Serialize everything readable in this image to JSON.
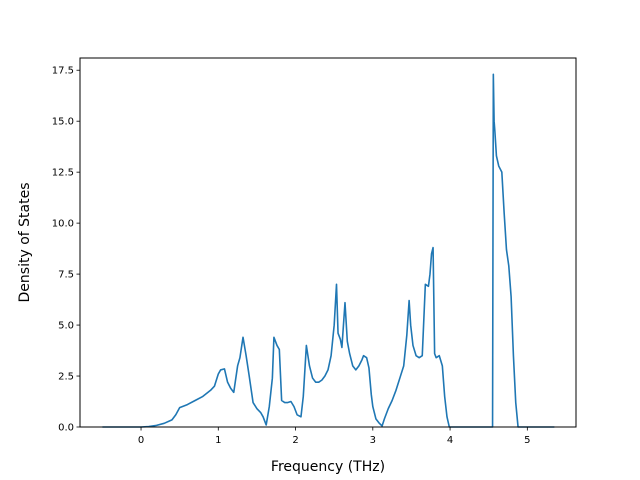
{
  "chart_data": {
    "type": "line",
    "title": "",
    "xlabel": "Frequency (THz)",
    "ylabel": "Density of States",
    "xlim": [
      -0.79,
      5.63
    ],
    "ylim": [
      0.0,
      18.1
    ],
    "xticks": [
      0,
      1,
      2,
      3,
      4,
      5
    ],
    "xtick_labels": [
      "0",
      "1",
      "2",
      "3",
      "4",
      "5"
    ],
    "yticks": [
      0.0,
      2.5,
      5.0,
      7.5,
      10.0,
      12.5,
      15.0,
      17.5
    ],
    "ytick_labels": [
      "0.0",
      "2.5",
      "5.0",
      "7.5",
      "10.0",
      "12.5",
      "15.0",
      "17.5"
    ],
    "grid": false,
    "legend": "none",
    "series_color": "#1f77b4",
    "series": [
      {
        "x": [
          -0.5,
          -0.2,
          0.0,
          0.1,
          0.2,
          0.3,
          0.4,
          0.45,
          0.5,
          0.6,
          0.7,
          0.8,
          0.9,
          0.95,
          1.0,
          1.03,
          1.08,
          1.12,
          1.16,
          1.2,
          1.25,
          1.28,
          1.32,
          1.36,
          1.4,
          1.45,
          1.5,
          1.55,
          1.58,
          1.62,
          1.66,
          1.7,
          1.72,
          1.76,
          1.79,
          1.82,
          1.86,
          1.9,
          1.94,
          1.98,
          2.02,
          2.07,
          2.1,
          2.14,
          2.18,
          2.22,
          2.26,
          2.3,
          2.34,
          2.38,
          2.42,
          2.46,
          2.5,
          2.53,
          2.55,
          2.58,
          2.6,
          2.64,
          2.67,
          2.7,
          2.74,
          2.78,
          2.82,
          2.86,
          2.88,
          2.92,
          2.95,
          2.98,
          3.0,
          3.04,
          3.08,
          3.12,
          3.15,
          3.2,
          3.25,
          3.3,
          3.35,
          3.4,
          3.44,
          3.47,
          3.49,
          3.52,
          3.56,
          3.6,
          3.64,
          3.68,
          3.72,
          3.74,
          3.76,
          3.78,
          3.8,
          3.82,
          3.86,
          3.9,
          3.93,
          3.96,
          3.99,
          4.0,
          4.2,
          4.55,
          4.56,
          4.57,
          4.58,
          4.6,
          4.63,
          4.67,
          4.7,
          4.73,
          4.76,
          4.79,
          4.82,
          4.85,
          4.88,
          4.9,
          5.0,
          5.35
        ],
        "y": [
          0.0,
          0.0,
          0.0,
          0.02,
          0.08,
          0.18,
          0.35,
          0.6,
          0.95,
          1.1,
          1.3,
          1.5,
          1.8,
          2.0,
          2.6,
          2.8,
          2.85,
          2.2,
          1.9,
          1.7,
          3.0,
          3.4,
          4.4,
          3.5,
          2.5,
          1.2,
          0.9,
          0.7,
          0.5,
          0.1,
          1.0,
          2.4,
          4.4,
          4.0,
          3.8,
          1.3,
          1.2,
          1.2,
          1.25,
          1.0,
          0.6,
          0.5,
          1.5,
          4.0,
          3.0,
          2.4,
          2.2,
          2.2,
          2.3,
          2.5,
          2.8,
          3.5,
          5.0,
          7.0,
          4.6,
          4.3,
          3.9,
          6.1,
          4.2,
          3.6,
          3.0,
          2.8,
          3.0,
          3.3,
          3.5,
          3.4,
          2.9,
          1.6,
          1.0,
          0.4,
          0.2,
          0.05,
          0.4,
          0.9,
          1.3,
          1.8,
          2.4,
          3.0,
          4.5,
          6.2,
          5.0,
          4.0,
          3.5,
          3.4,
          3.5,
          7.0,
          6.9,
          7.5,
          8.5,
          8.8,
          3.6,
          3.4,
          3.5,
          3.0,
          1.5,
          0.5,
          0.0,
          0.0,
          0.0,
          0.0,
          17.3,
          15.0,
          14.5,
          13.3,
          12.8,
          12.5,
          10.5,
          8.7,
          7.9,
          6.4,
          3.5,
          1.2,
          0.0,
          0.0,
          0.0,
          0.0
        ]
      }
    ]
  }
}
